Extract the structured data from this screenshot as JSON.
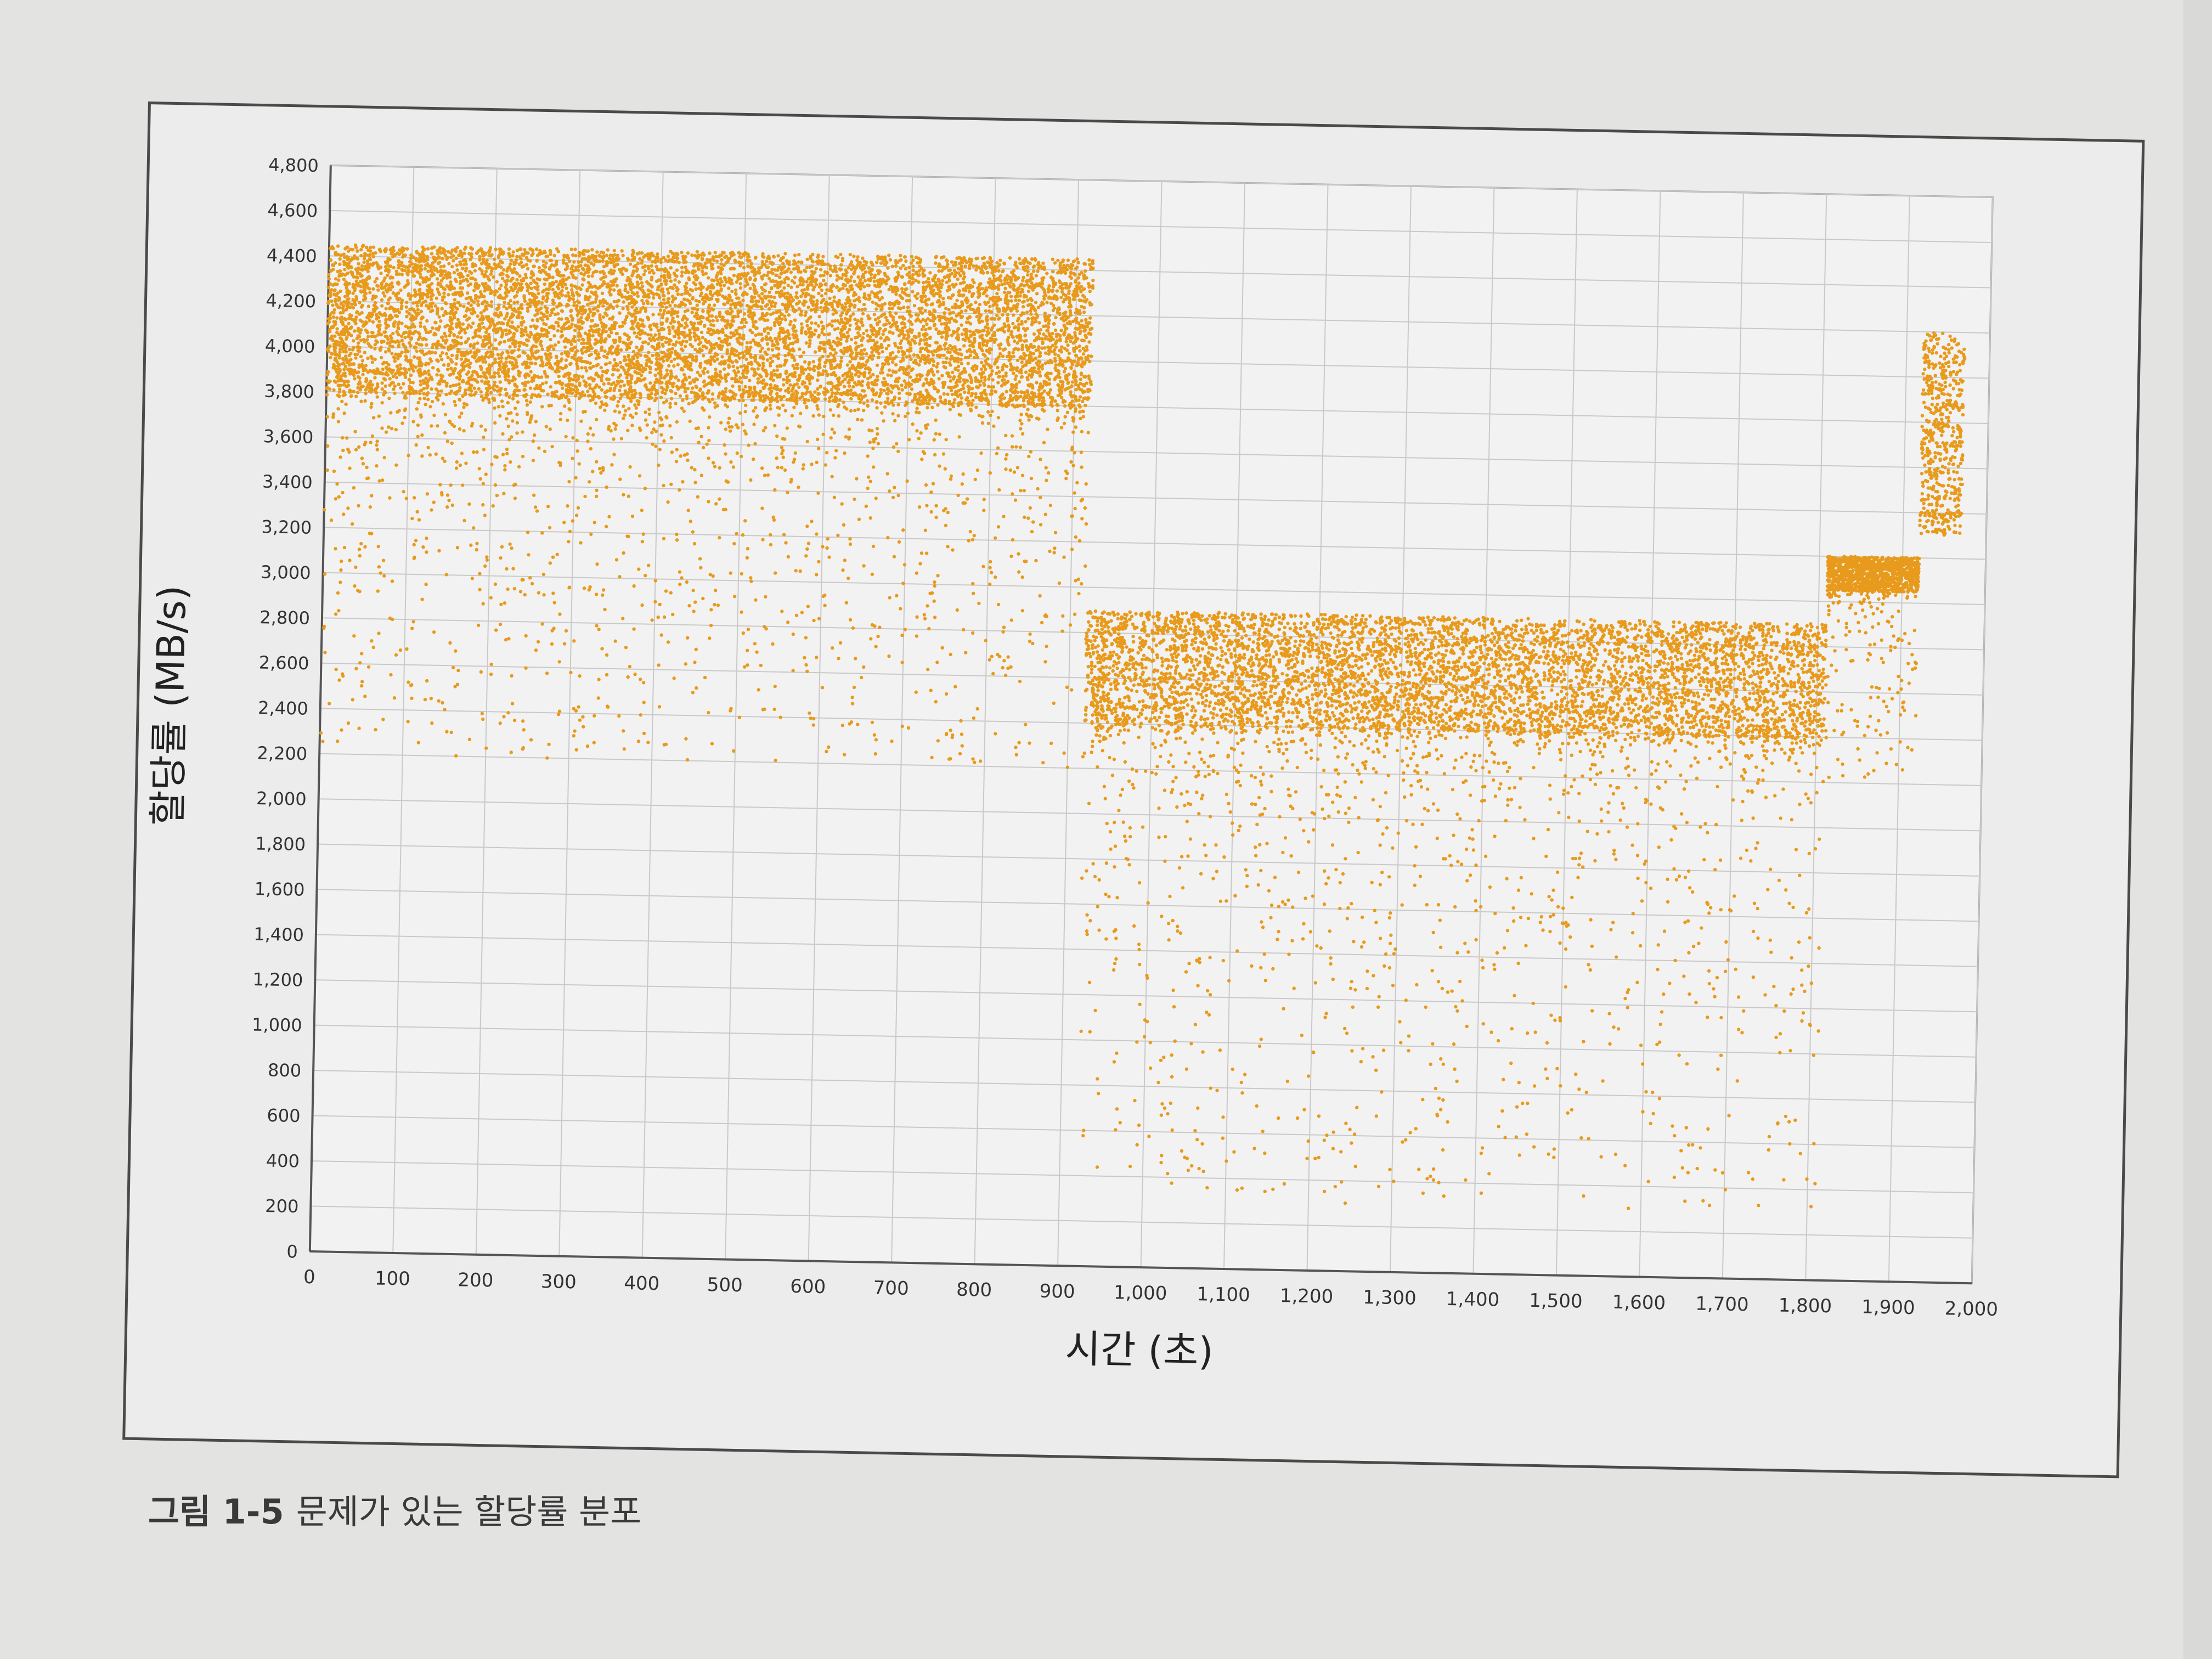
{
  "caption": {
    "label": "그림 1-5",
    "text": "문제가 있는 할당률 분포"
  },
  "chart_data": {
    "type": "scatter",
    "title": "",
    "xlabel": "시간 (초)",
    "ylabel": "할당률 (MB/s)",
    "xlim": [
      0,
      2000
    ],
    "ylim": [
      0,
      4800
    ],
    "xticks": [
      "0",
      "100",
      "200",
      "300",
      "400",
      "500",
      "600",
      "700",
      "800",
      "900",
      "1,000",
      "1,100",
      "1,200",
      "1,300",
      "1,400",
      "1,500",
      "1,600",
      "1,700",
      "1,800",
      "1,900",
      "2,000"
    ],
    "yticks": [
      "0",
      "200",
      "400",
      "600",
      "800",
      "1,000",
      "1,200",
      "1,400",
      "1,600",
      "1,800",
      "2,000",
      "2,200",
      "2,400",
      "2,600",
      "2,800",
      "3,000",
      "3,200",
      "3,400",
      "3,600",
      "3,800",
      "4,000",
      "4,200",
      "4,400",
      "4,600",
      "4,800"
    ],
    "grid": true,
    "marker_color": "#e89a1c",
    "series": [
      {
        "segments": [
          {
            "x_range": [
              0,
              920
            ],
            "y_dense_range": [
              3800,
              4450
            ],
            "y_min": 2200,
            "y_max": 4600
          },
          {
            "x_range": [
              920,
              1810
            ],
            "y_dense_range": [
              2400,
              2900
            ],
            "y_min": 300,
            "y_max": 3000
          },
          {
            "x_range": [
              1810,
              1920
            ],
            "y_dense_range": [
              3050,
              3200
            ],
            "y_min": 2200,
            "y_max": 3200
          },
          {
            "x_range": [
              1920,
              1970
            ],
            "y_dense_range": [
              3400,
              4200
            ],
            "y_min": 3300,
            "y_max": 4400
          }
        ]
      }
    ]
  }
}
